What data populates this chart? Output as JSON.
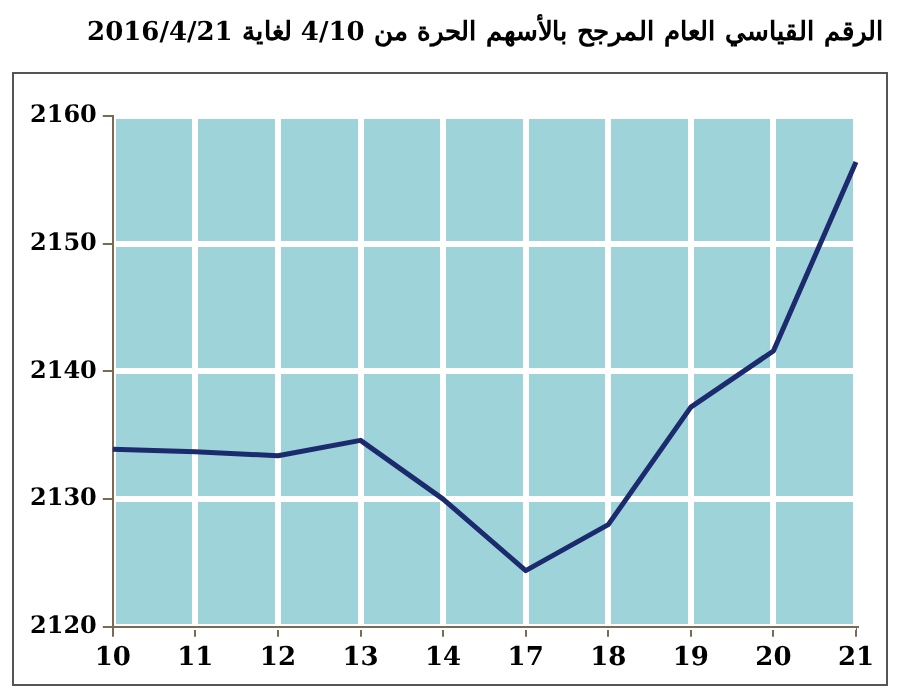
{
  "chart_data": {
    "type": "line",
    "title": "الرقم القياسي العام المرجح بالأسهم الحرة من 4/10 لغاية 2016/4/21",
    "categories": [
      "10",
      "11",
      "12",
      "13",
      "14",
      "17",
      "18",
      "19",
      "20",
      "21"
    ],
    "series": [
      {
        "color": "#1c2a6e",
        "values": [
          2133.9,
          2133.7,
          2133.4,
          2134.6,
          2130,
          2124.4,
          2128,
          2137.2,
          2141.6,
          2156.4
        ]
      }
    ],
    "ylim": [
      2120,
      2160
    ],
    "yticks": [
      2120,
      2130,
      2140,
      2150,
      2160
    ],
    "grid": true,
    "marker": "none",
    "line_style": "solid",
    "legend": false
  }
}
